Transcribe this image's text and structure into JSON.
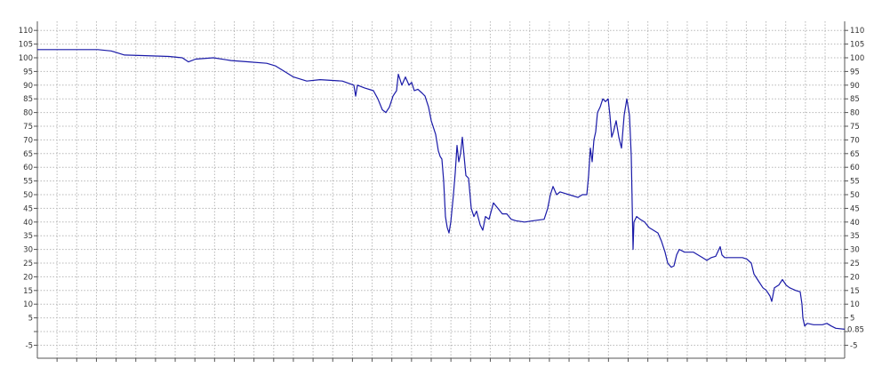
{
  "chart_data": {
    "type": "line",
    "title": "",
    "xlabel": "",
    "ylabel": "",
    "ylim": [
      -5,
      110
    ],
    "y_ticks": [
      -5,
      0,
      5,
      10,
      15,
      20,
      25,
      30,
      35,
      40,
      45,
      50,
      55,
      60,
      65,
      70,
      75,
      80,
      85,
      90,
      95,
      100,
      105,
      110
    ],
    "y_tick_labels_displayed": [
      "-5",
      "",
      "5",
      "10",
      "15",
      "20",
      "25",
      "30",
      "35",
      "40",
      "45",
      "50",
      "55",
      "60",
      "65",
      "70",
      "75",
      "80",
      "85",
      "90",
      "95",
      "100",
      "105",
      "110"
    ],
    "y_axis_both_sides": true,
    "x_tick_labels": [],
    "grid": true,
    "grid_style": "dotted",
    "line_color": "#1a1aa8",
    "last_value_label": "0.85",
    "series": [
      {
        "x": [
          0,
          38,
          68,
          83,
          98,
          118,
          148,
          163,
          170,
          178,
          198,
          218,
          238,
          258,
          268,
          278,
          288,
          303,
          318,
          343,
          356,
          358,
          360,
          368,
          378,
          383,
          388,
          392,
          396,
          400,
          404,
          406,
          410,
          414,
          418,
          421,
          424,
          428,
          433,
          436,
          440,
          443,
          448,
          451,
          453,
          455,
          457,
          459,
          461,
          463,
          465,
          468,
          470,
          472,
          474,
          476,
          478,
          480,
          482,
          485,
          488,
          491,
          494,
          498,
          501,
          504,
          508,
          513,
          518,
          523,
          528,
          533,
          538,
          548,
          558,
          570,
          574,
          577,
          580,
          584,
          588,
          598,
          608,
          613,
          618,
          620,
          622,
          624,
          626,
          628,
          630,
          633,
          636,
          639,
          642,
          644,
          646,
          648,
          651,
          654,
          657,
          660,
          663,
          666,
          668,
          669,
          670,
          671,
          674,
          678,
          683,
          688,
          698,
          702,
          706,
          709,
          713,
          716,
          719,
          722,
          728,
          738,
          748,
          753,
          758,
          763,
          768,
          770,
          773,
          783,
          793,
          798,
          803,
          806,
          810,
          816,
          820,
          824,
          826,
          829,
          834,
          838,
          842,
          846,
          853,
          858,
          860,
          861,
          863,
          866,
          873,
          883,
          888,
          893,
          898,
          908
        ],
        "values": [
          103,
          103,
          103,
          102.5,
          101,
          100.8,
          100.5,
          100,
          98.5,
          99.5,
          100,
          99,
          98.5,
          98,
          97,
          95,
          93,
          91.5,
          92,
          91.5,
          90,
          86,
          90,
          89,
          88,
          85,
          81,
          80,
          82,
          86,
          88,
          94,
          90,
          93,
          90,
          91,
          88,
          88.5,
          87,
          86,
          82,
          77,
          72,
          66,
          64,
          63,
          55,
          42,
          38,
          36,
          40,
          50,
          58,
          68,
          62,
          65,
          71,
          64,
          57,
          56,
          45,
          42,
          44,
          39,
          37,
          42,
          41,
          47,
          45,
          43,
          43,
          41,
          40.5,
          40,
          40.5,
          41,
          45,
          50,
          53,
          50,
          51,
          50,
          49,
          50,
          50,
          57,
          67,
          62,
          70,
          73,
          80,
          82,
          85,
          84,
          85,
          79,
          71,
          73,
          77,
          71,
          67,
          79,
          85,
          79,
          64,
          47,
          30,
          40,
          42,
          41,
          40,
          38,
          36,
          33,
          29,
          25,
          23.5,
          24,
          28,
          30,
          29,
          29,
          27,
          26,
          27,
          27.5,
          31,
          28,
          27,
          27,
          27,
          26.5,
          25,
          21,
          19,
          16,
          15,
          13,
          11,
          16,
          17,
          19,
          17,
          16,
          15,
          14.5,
          10,
          5,
          2,
          3,
          2.5,
          2.5,
          3,
          2,
          1.2,
          0.85
        ]
      }
    ]
  }
}
